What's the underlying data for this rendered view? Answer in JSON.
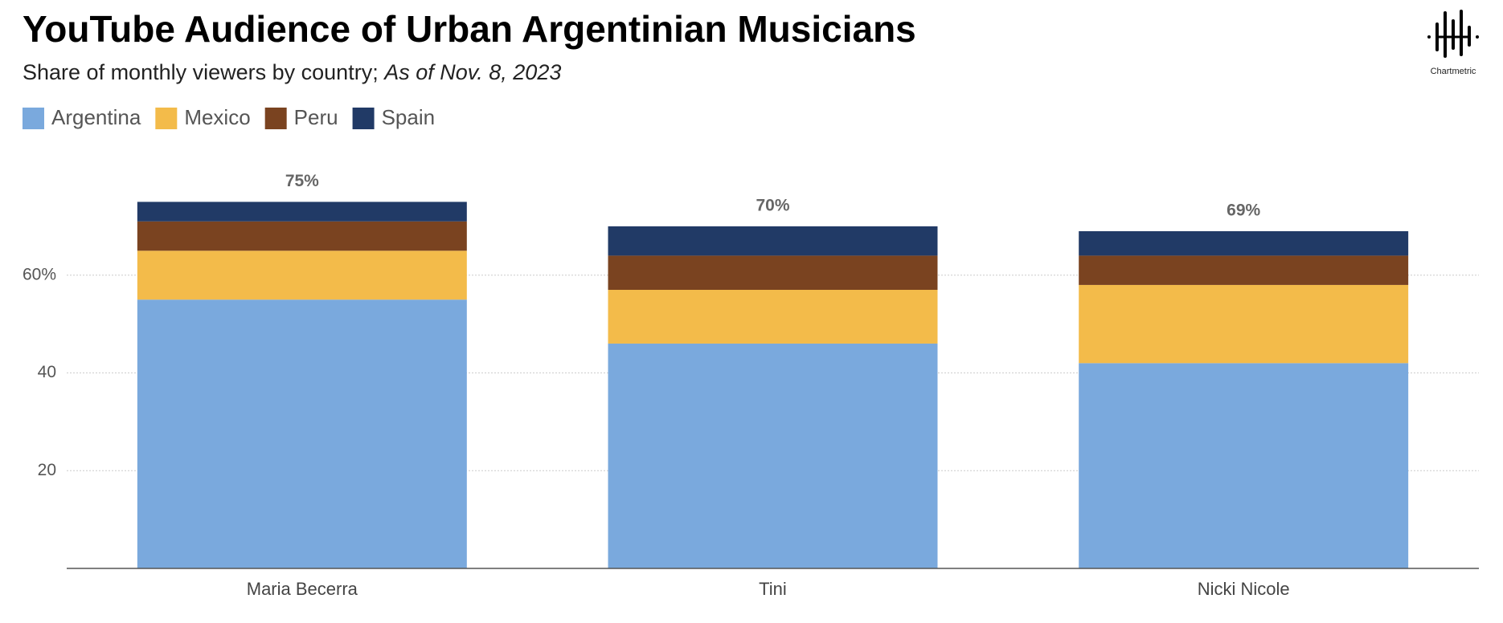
{
  "brand": "Chartmetric",
  "chart_data": {
    "type": "stacked_bar",
    "title": "YouTube Audience of Urban Argentinian Musicians",
    "subtitle": "Share of monthly viewers by country;",
    "subtitle_note": "As of Nov. 8, 2023",
    "categories": [
      "Maria Becerra",
      "Tini",
      "Nicki Nicole"
    ],
    "series": [
      {
        "name": "Argentina",
        "color": "#7aa9dd",
        "values": [
          55,
          46,
          42
        ]
      },
      {
        "name": "Mexico",
        "color": "#f3bb4a",
        "values": [
          10,
          11,
          16
        ]
      },
      {
        "name": "Peru",
        "color": "#7a4320",
        "values": [
          6,
          7,
          6
        ]
      },
      {
        "name": "Spain",
        "color": "#213a66",
        "values": [
          4,
          6,
          5
        ]
      }
    ],
    "totals": [
      75,
      70,
      69
    ],
    "total_labels": [
      "75%",
      "70%",
      "69%"
    ],
    "ylim": [
      0,
      80
    ],
    "yticks": [
      20,
      40,
      {
        "value": 60,
        "label": "60%"
      }
    ],
    "grid": true,
    "legend": "top-left"
  }
}
